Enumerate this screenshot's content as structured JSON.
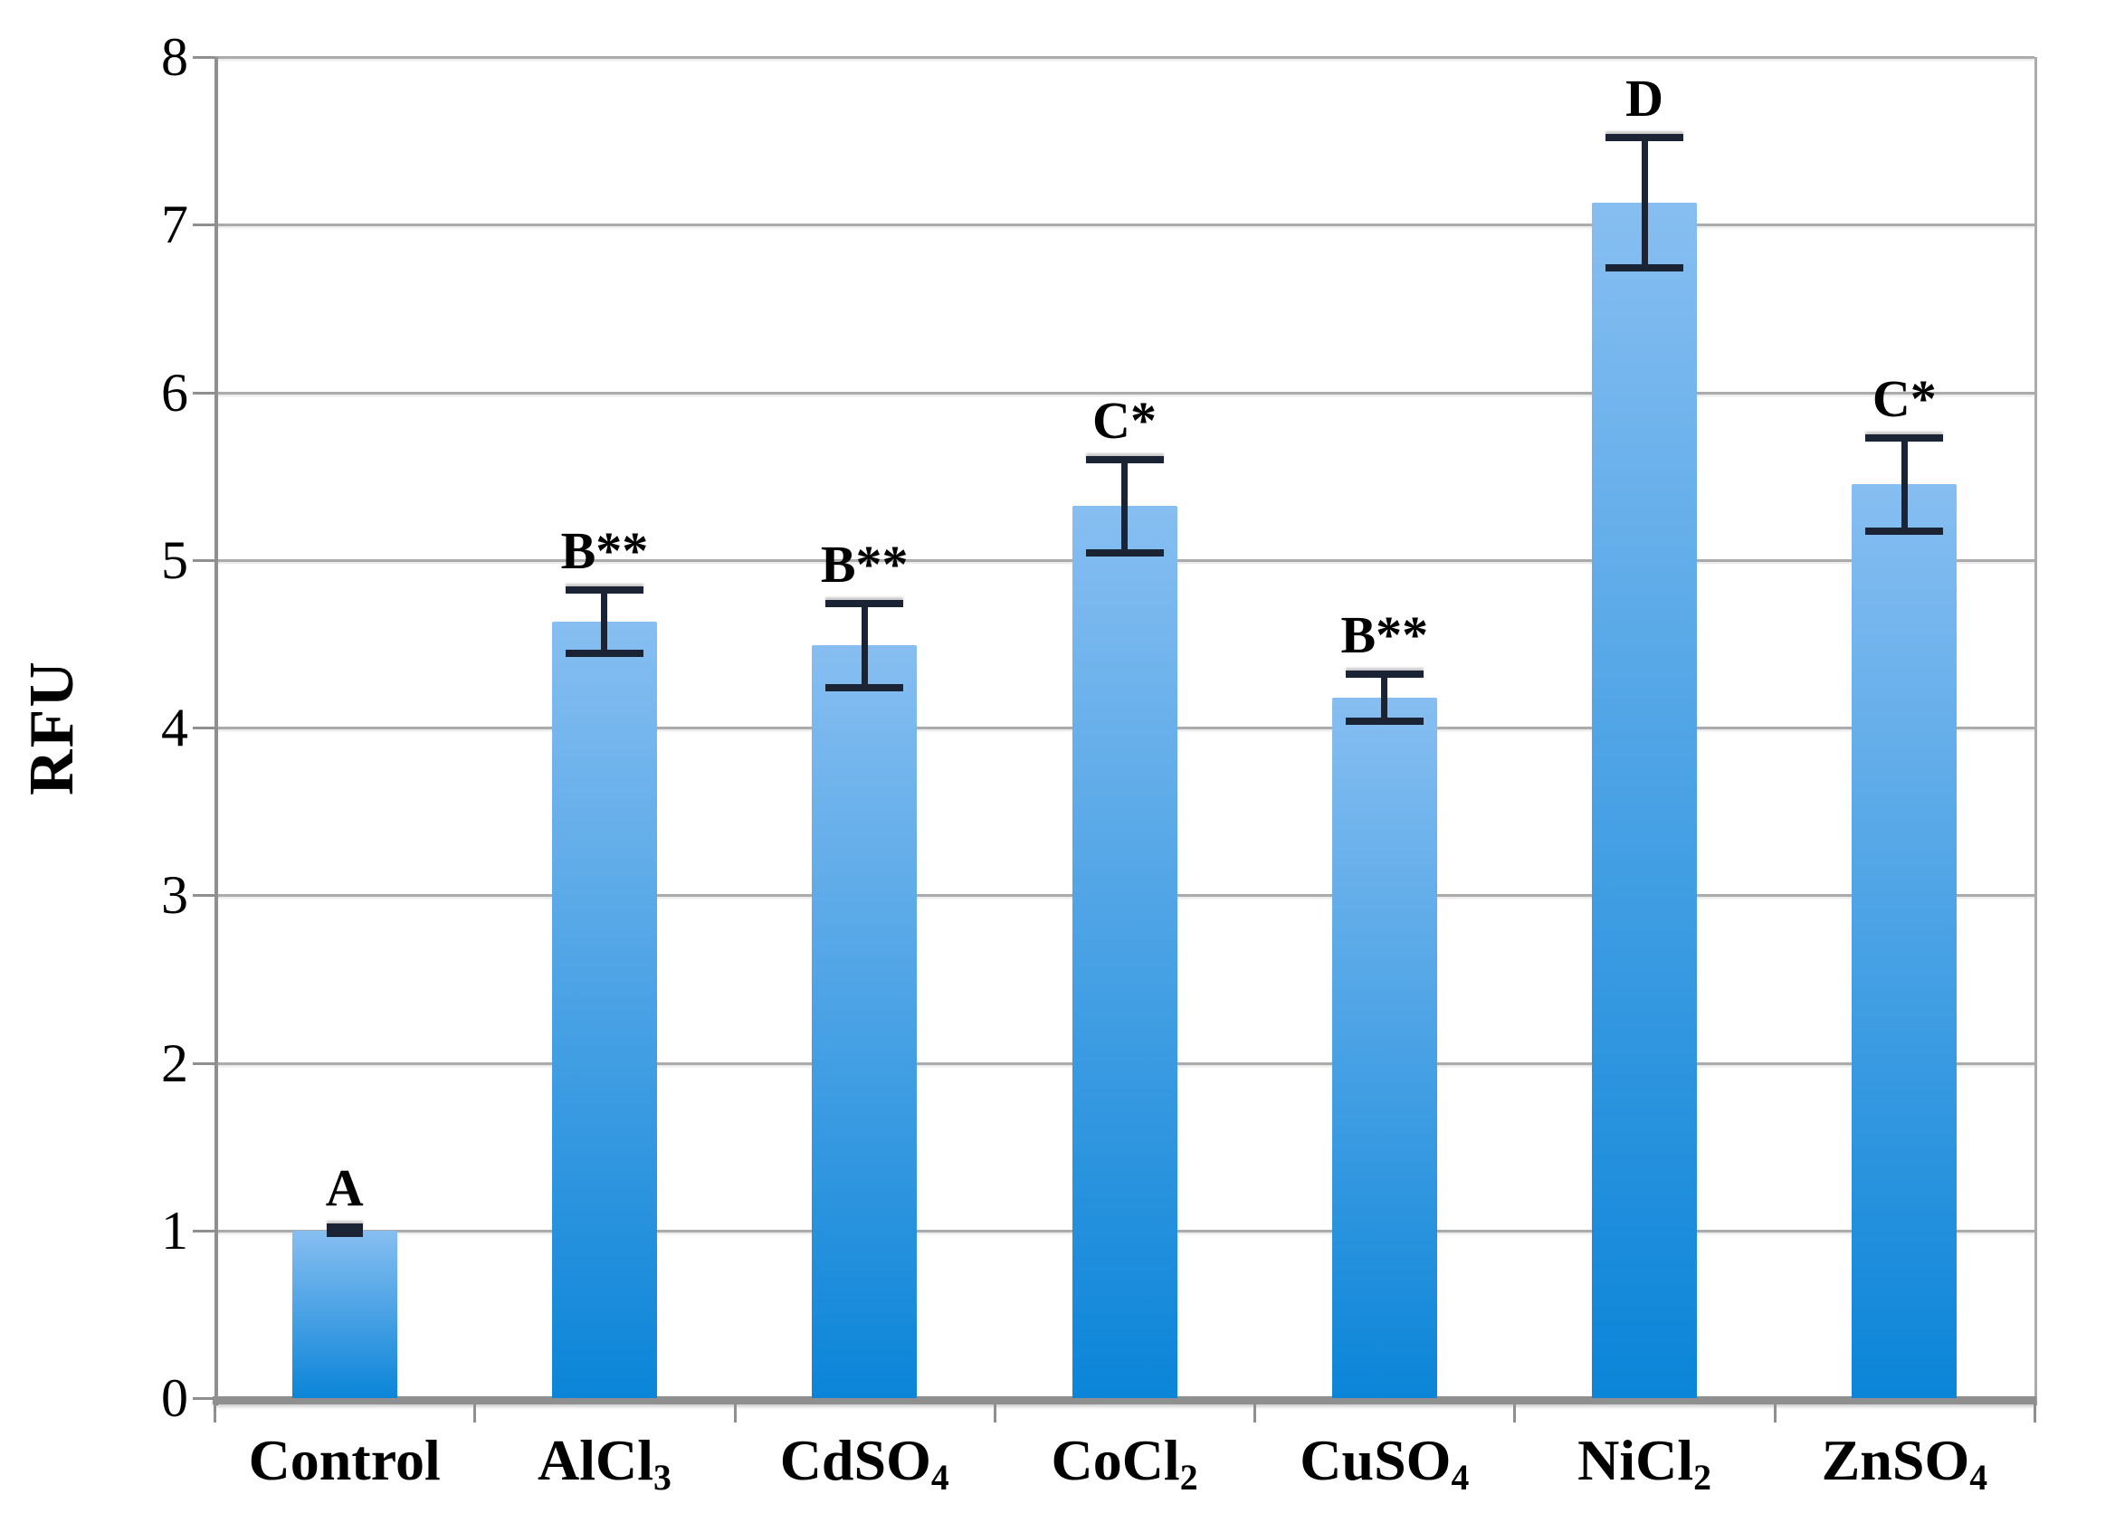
{
  "chart_data": {
    "type": "bar",
    "title": "",
    "xlabel": "",
    "ylabel": "RFU",
    "ylim": [
      0,
      8
    ],
    "yticks": [
      0,
      1,
      2,
      3,
      4,
      5,
      6,
      7,
      8
    ],
    "grid": true,
    "legend": "none",
    "categories": [
      {
        "text": "Control",
        "sub": ""
      },
      {
        "text": "AlCl",
        "sub": "3"
      },
      {
        "text": "CdSO",
        "sub": "4"
      },
      {
        "text": "CoCl",
        "sub": "2"
      },
      {
        "text": "CuSO",
        "sub": "4"
      },
      {
        "text": "NiCl",
        "sub": "2"
      },
      {
        "text": "ZnSO",
        "sub": "4"
      }
    ],
    "values": [
      1.0,
      4.63,
      4.49,
      5.32,
      4.18,
      7.13,
      5.45
    ],
    "errors": [
      0.02,
      0.19,
      0.25,
      0.28,
      0.14,
      0.39,
      0.28
    ],
    "sig_labels": [
      "A",
      "B**",
      "B**",
      "C*",
      "B**",
      "D",
      "C*"
    ],
    "colors": {
      "bar_top": "#87bef1",
      "bar_bottom": "#0b85d8",
      "gridline": "#ababab",
      "axis": "#8f8f8f",
      "error_bar": "#1b2434",
      "text": "#000000",
      "background": "#ffffff"
    }
  }
}
